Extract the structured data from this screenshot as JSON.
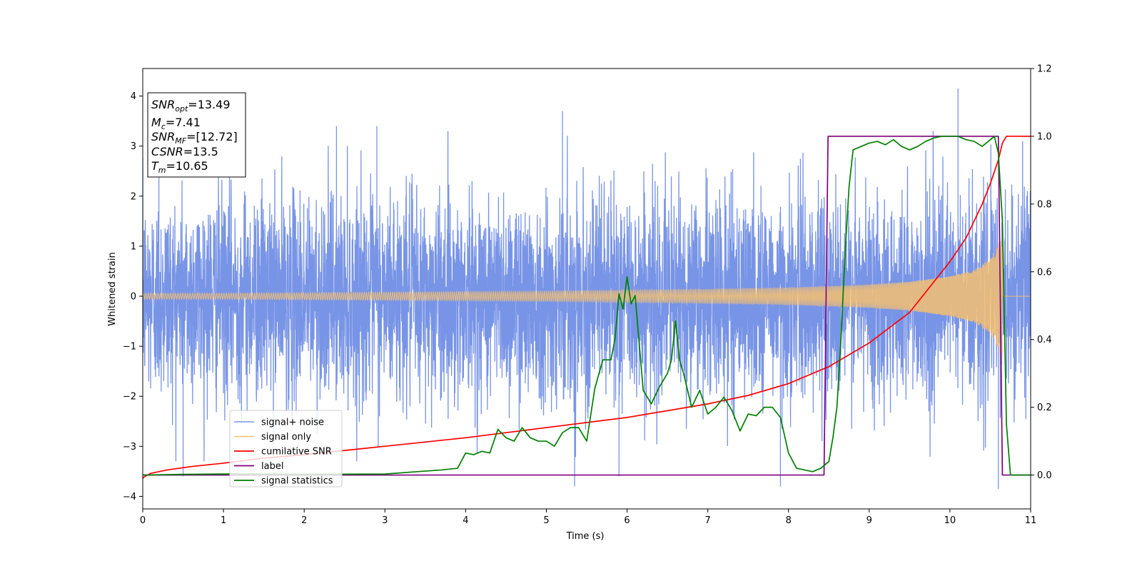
{
  "chart_data": {
    "type": "line",
    "xlabel": "Time (s)",
    "ylabel": "Whitened strain",
    "xlim": [
      0,
      11
    ],
    "ylim_left": [
      -4.25,
      4.55
    ],
    "ylim_right": [
      -0.1,
      1.2
    ],
    "x_ticks": [
      "0",
      "1",
      "2",
      "3",
      "4",
      "5",
      "6",
      "7",
      "8",
      "9",
      "10",
      "11"
    ],
    "y_ticks_left": [
      "−4",
      "−3",
      "−2",
      "−1",
      "0",
      "1",
      "2",
      "3",
      "4"
    ],
    "y_ticks_right": [
      "0.0",
      "0.2",
      "0.4",
      "0.6",
      "0.8",
      "1.0",
      "1.2"
    ],
    "grid": false,
    "legend_position": "lower-left",
    "series": [
      {
        "name": "signal+ noise",
        "axis": "left",
        "color": "#7894e6",
        "envelope_sigma": 1.0,
        "peaks": [
          [
            0.2,
            2.6
          ],
          [
            0.5,
            -3.6
          ],
          [
            2.4,
            3.4
          ],
          [
            2.9,
            3.4
          ],
          [
            5.2,
            3.7
          ],
          [
            5.35,
            -3.8
          ],
          [
            5.9,
            -3.6
          ],
          [
            7.9,
            -3.8
          ],
          [
            10.1,
            4.15
          ],
          [
            10.6,
            -3.85
          ],
          [
            10.9,
            3.1
          ]
        ]
      },
      {
        "name": "signal only",
        "axis": "left",
        "color": "#f5c070",
        "envelope": {
          "x": [
            0,
            1,
            2,
            3,
            4,
            5,
            6,
            7,
            8,
            9,
            9.5,
            10,
            10.3,
            10.5,
            10.6,
            10.65
          ],
          "amp": [
            0.06,
            0.06,
            0.07,
            0.08,
            0.09,
            0.1,
            0.12,
            0.14,
            0.17,
            0.23,
            0.29,
            0.4,
            0.52,
            0.75,
            1.05,
            1.25
          ]
        }
      },
      {
        "name": "cumilative SNR",
        "axis": "right",
        "color": "#ff0000",
        "x": [
          0,
          0.02,
          0.1,
          0.3,
          0.6,
          1,
          1.5,
          2,
          3,
          4,
          5,
          6,
          7,
          7.5,
          8,
          8.5,
          9,
          9.5,
          10,
          10.2,
          10.4,
          10.5,
          10.6,
          10.65,
          10.7,
          11
        ],
        "values": [
          -0.01,
          -0.005,
          0.005,
          0.015,
          0.025,
          0.035,
          0.05,
          0.06,
          0.085,
          0.11,
          0.14,
          0.17,
          0.21,
          0.235,
          0.27,
          0.32,
          0.39,
          0.48,
          0.63,
          0.7,
          0.8,
          0.86,
          0.93,
          0.98,
          1.0,
          1.0
        ]
      },
      {
        "name": "label",
        "axis": "right",
        "color": "#800080",
        "x": [
          0,
          8.44,
          8.49,
          10.6,
          10.65,
          11
        ],
        "values": [
          0,
          0,
          1,
          1,
          0,
          0
        ]
      },
      {
        "name": "signal statistics",
        "axis": "right",
        "color": "#008000",
        "x": [
          0,
          0.5,
          1,
          2,
          3,
          3.4,
          3.7,
          3.9,
          4.0,
          4.1,
          4.2,
          4.3,
          4.4,
          4.5,
          4.6,
          4.7,
          4.8,
          4.9,
          5.0,
          5.1,
          5.2,
          5.3,
          5.4,
          5.5,
          5.6,
          5.7,
          5.8,
          5.85,
          5.9,
          5.95,
          6.0,
          6.05,
          6.1,
          6.15,
          6.2,
          6.3,
          6.4,
          6.5,
          6.55,
          6.6,
          6.65,
          6.7,
          6.8,
          6.9,
          7.0,
          7.1,
          7.2,
          7.3,
          7.4,
          7.5,
          7.6,
          7.7,
          7.8,
          7.9,
          8.0,
          8.1,
          8.2,
          8.3,
          8.4,
          8.5,
          8.55,
          8.6,
          8.65,
          8.7,
          8.75,
          8.8,
          8.9,
          9.0,
          9.1,
          9.2,
          9.3,
          9.4,
          9.5,
          9.6,
          9.7,
          9.8,
          9.9,
          10.0,
          10.1,
          10.2,
          10.3,
          10.4,
          10.5,
          10.55,
          10.6,
          10.65,
          10.7,
          10.75,
          11
        ],
        "values": [
          0.0,
          0.002,
          0.003,
          0.002,
          0.003,
          0.01,
          0.015,
          0.02,
          0.065,
          0.06,
          0.07,
          0.065,
          0.135,
          0.11,
          0.1,
          0.14,
          0.11,
          0.1,
          0.1,
          0.085,
          0.125,
          0.14,
          0.14,
          0.1,
          0.255,
          0.34,
          0.34,
          0.4,
          0.535,
          0.49,
          0.585,
          0.505,
          0.53,
          0.39,
          0.25,
          0.21,
          0.26,
          0.3,
          0.34,
          0.455,
          0.34,
          0.3,
          0.2,
          0.25,
          0.18,
          0.2,
          0.23,
          0.19,
          0.13,
          0.18,
          0.175,
          0.2,
          0.2,
          0.17,
          0.065,
          0.02,
          0.015,
          0.01,
          0.02,
          0.04,
          0.11,
          0.2,
          0.4,
          0.65,
          0.85,
          0.96,
          0.97,
          0.98,
          0.985,
          0.975,
          0.99,
          0.97,
          0.96,
          0.97,
          0.985,
          0.995,
          1.0,
          1.0,
          1.0,
          0.99,
          0.985,
          0.97,
          0.99,
          1.0,
          0.95,
          0.75,
          0.15,
          0.0,
          0.0
        ]
      }
    ],
    "annotation": {
      "snr_opt": {
        "base": "SNR",
        "sub": "opt",
        "value": "=13.49"
      },
      "mc": {
        "base": "M",
        "sub": "c",
        "value": "=7.41"
      },
      "snr_mf": {
        "base": "SNR",
        "sub": "MF",
        "value": "=[12.72]"
      },
      "csnr": {
        "base": "CSNR",
        "value": "=13.5"
      },
      "tm": {
        "base": "T",
        "sub": "m",
        "value": "=10.65"
      }
    }
  }
}
